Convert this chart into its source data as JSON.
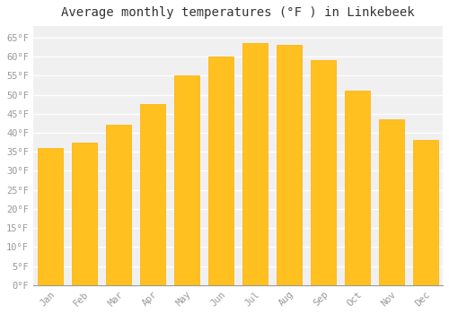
{
  "title": "Average monthly temperatures (°F ) in Linkebeek",
  "months": [
    "Jan",
    "Feb",
    "Mar",
    "Apr",
    "May",
    "Jun",
    "Jul",
    "Aug",
    "Sep",
    "Oct",
    "Nov",
    "Dec"
  ],
  "values": [
    36,
    37.5,
    42,
    47.5,
    55,
    60,
    63.5,
    63,
    59,
    51,
    43.5,
    38
  ],
  "bar_color_face": "#FFC020",
  "bar_color_edge": "#FFB000",
  "background_color": "#FFFFFF",
  "plot_bg_color": "#F0F0F0",
  "grid_color": "#FFFFFF",
  "yticks": [
    0,
    5,
    10,
    15,
    20,
    25,
    30,
    35,
    40,
    45,
    50,
    55,
    60,
    65
  ],
  "ylim": [
    0,
    68
  ],
  "title_fontsize": 10,
  "tick_fontsize": 7.5,
  "tick_color": "#999999",
  "font_family": "monospace"
}
